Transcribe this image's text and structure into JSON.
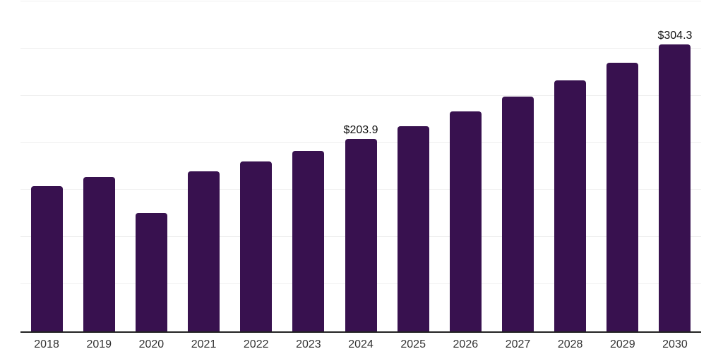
{
  "chart_data": {
    "type": "bar",
    "title": "",
    "xlabel": "",
    "ylabel": "",
    "categories": [
      "2018",
      "2019",
      "2020",
      "2021",
      "2022",
      "2023",
      "2024",
      "2025",
      "2026",
      "2027",
      "2028",
      "2029",
      "2030"
    ],
    "values": [
      154.2,
      163.9,
      125.4,
      170.0,
      180.4,
      191.6,
      203.9,
      218.0,
      233.0,
      249.1,
      266.3,
      284.7,
      304.3
    ],
    "value_labels": {
      "2024": "$203.9",
      "2030": "$304.3"
    },
    "ylim": [
      0,
      350
    ],
    "gridline_step": 50,
    "grid": "horizontal-only",
    "legend": "none",
    "colors": {
      "bar": "#38114F",
      "gridline": "#EFEFEF",
      "axis_line": "#222222",
      "tick_label": "#333333",
      "value_label": "#111111",
      "background": "#FFFFFF"
    }
  }
}
